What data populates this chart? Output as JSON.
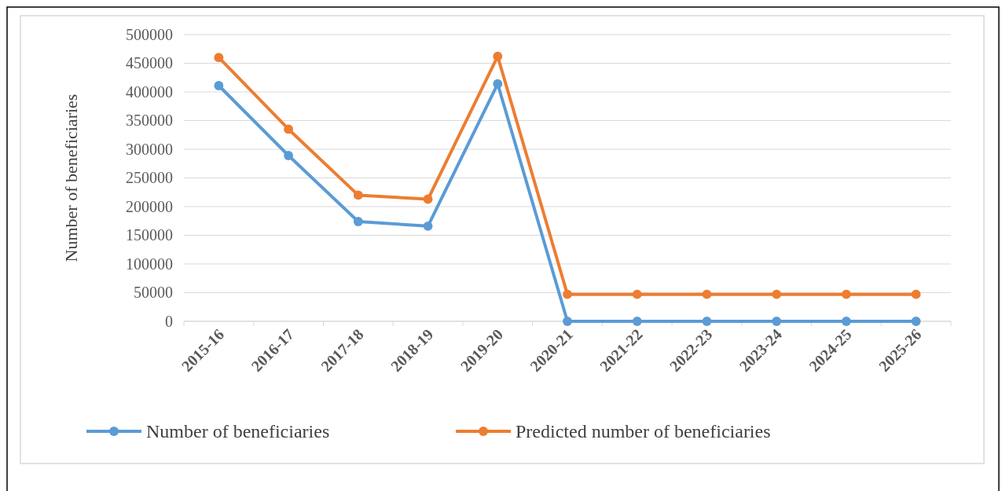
{
  "chart_data": {
    "type": "line",
    "ylabel": "Number of beneficiaries",
    "categories": [
      "2015-16",
      "2016-17",
      "2017-18",
      "2018-19",
      "2019-20",
      "2020-21",
      "2021-22",
      "2022-23",
      "2023-24",
      "2024-25",
      "2025-26"
    ],
    "series": [
      {
        "name": "Number of beneficiaries",
        "color": "#5b9bd5",
        "values": [
          411000,
          289000,
          174000,
          166000,
          414000,
          0,
          0,
          0,
          0,
          0,
          0
        ]
      },
      {
        "name": "Predicted number of beneficiaries",
        "color": "#ed7d31",
        "values": [
          460000,
          335000,
          220000,
          213000,
          462000,
          47000,
          47000,
          47000,
          47000,
          47000,
          47000
        ]
      }
    ],
    "ylim": [
      0,
      500000
    ],
    "yticks": [
      0,
      50000,
      100000,
      150000,
      200000,
      250000,
      300000,
      350000,
      400000,
      450000,
      500000
    ],
    "grid": "y",
    "legend": "bottom",
    "marker": "circle",
    "line_style": "solid"
  }
}
